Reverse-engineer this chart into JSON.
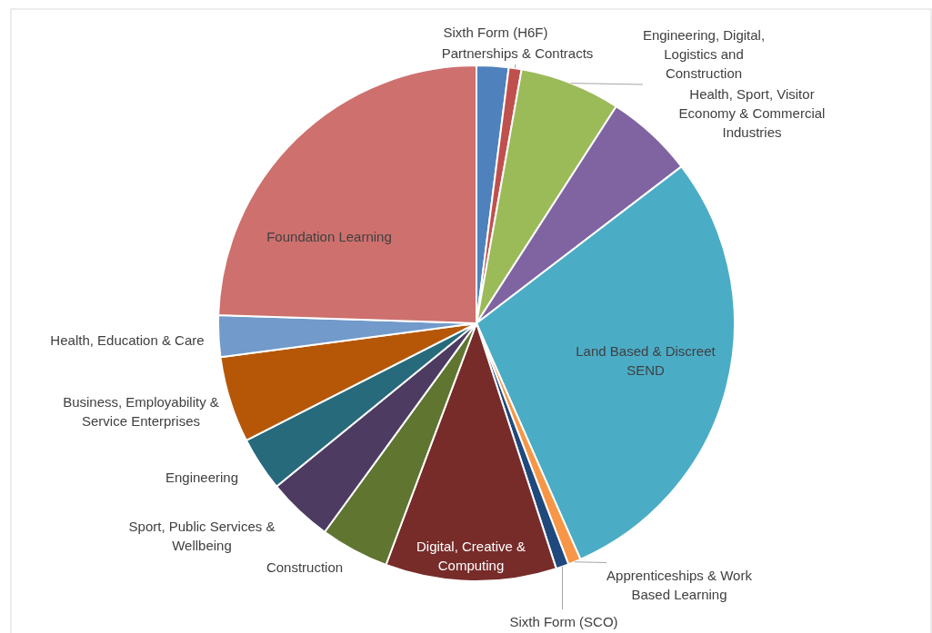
{
  "chart_data": {
    "type": "pie",
    "categories": [
      "Sixth Form (H6F)",
      "Partnerships & Contracts",
      "Engineering, Digital, Logistics and Construction",
      "Health, Sport, Visitor Economy & Commercial Industries",
      "Land Based & Discreet SEND",
      "Apprenticeships & Work Based Learning",
      "Sixth Form (SCO)",
      "Digital, Creative & Computing",
      "Construction",
      "Sport, Public Services & Wellbeing",
      "Engineering",
      "Business, Employability & Service Enterprises",
      "Health, Education & Care",
      "Foundation Learning"
    ],
    "values": [
      2,
      0.8,
      6.3,
      5.5,
      28.8,
      0.8,
      0.8,
      10.7,
      4.3,
      4.1,
      3.4,
      5.4,
      2.6,
      24.5
    ],
    "colors": [
      "#4f81bd",
      "#c0504d",
      "#9bbb59",
      "#8064a2",
      "#4bacc6",
      "#f79646",
      "#1f497d",
      "#772c2a",
      "#5f7530",
      "#4d3b62",
      "#276a7c",
      "#b65708",
      "#729aca",
      "#cd706e"
    ]
  }
}
